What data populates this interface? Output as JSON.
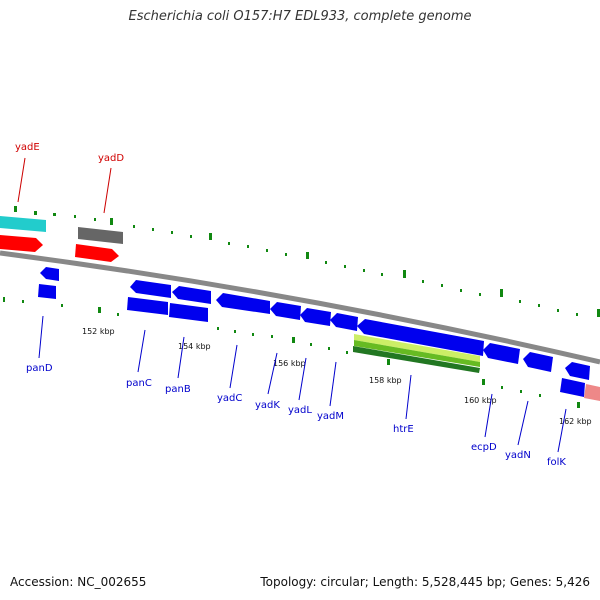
{
  "title": "Escherichia coli O157:H7 EDL933, complete genome",
  "footer": {
    "accession": "Accession: NC_002655",
    "topology": "Topology: circular; Length: 5,528,445 bp; Genes: 5,426"
  },
  "colors": {
    "cds_forward": "#ff0000",
    "cds_reverse": "#0000ee",
    "feature_cyan": "#22cccc",
    "feature_grey": "#666666",
    "rrna_green": "#66bb22",
    "pink": "#ee8888",
    "backbone": "#888888",
    "tick_green": "#118811",
    "label_blue": "#0000cc",
    "label_red": "#cc0000"
  },
  "ticks": [
    "152 kbp",
    "154 kbp",
    "156 kbp",
    "158 kbp",
    "160 kbp",
    "162 kbp"
  ],
  "genes_forward": [
    "yadE",
    "yadD"
  ],
  "genes_reverse": [
    "panD",
    "panC",
    "panB",
    "yadC",
    "yadK",
    "yadL",
    "yadM",
    "htrE",
    "ecpD",
    "yadN",
    "folK"
  ]
}
